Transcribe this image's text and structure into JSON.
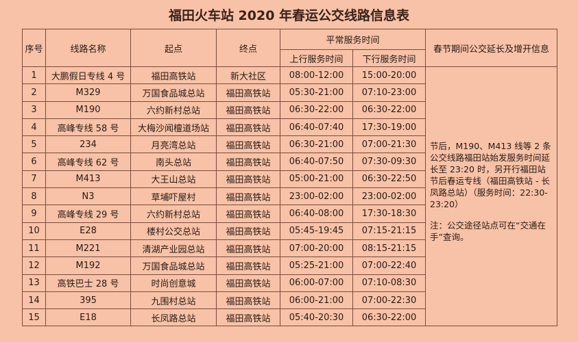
{
  "title": "福田火车站 2020 年春运公交线路信息表",
  "headers": {
    "no": "序号",
    "name": "线路名称",
    "start": "起点",
    "end": "终点",
    "normal": "平常服务时间",
    "up": "上行服务时间",
    "down": "下行服务时间",
    "extra": "春节期间公交延长及增开信息"
  },
  "rows": [
    [
      "1",
      "大鹏假日专线 4 号",
      "福田高铁站",
      "新大社区",
      "08:00-12:00",
      "15:00-20:00"
    ],
    [
      "2",
      "M329",
      "万国食品城总站",
      "福田高铁站",
      "05:30-21:00",
      "07:10-23:00"
    ],
    [
      "3",
      "M190",
      "六约新村总站",
      "福田高铁站",
      "06:30-22:00",
      "06:30-22:00"
    ],
    [
      "4",
      "高峰专线 58 号",
      "大梅沙闻檀道场站",
      "福田高铁站",
      "06:40-07:40",
      "17:30-19:00"
    ],
    [
      "5",
      "234",
      "月亮湾总站",
      "福田高铁站",
      "06:30-21:00",
      "07:00-21:30"
    ],
    [
      "6",
      "高峰专线 62 号",
      "南头总站",
      "福田高铁站",
      "06:40-07:50",
      "07:30-09:30"
    ],
    [
      "7",
      "M413",
      "大王山总站",
      "福田高铁站",
      "05:00-21:00",
      "06:30-22:50"
    ],
    [
      "8",
      "N3",
      "草埔吓屋村",
      "福田高铁站",
      "23:00-02:00",
      "23:00-02:00"
    ],
    [
      "9",
      "高峰专线 29 号",
      "六约新村总站",
      "福田高铁站",
      "06:40-08:00",
      "17:30-18:30"
    ],
    [
      "10",
      "E28",
      "楼村公交总站",
      "福田高铁站",
      "05:45-19:45",
      "07:15-21:15"
    ],
    [
      "11",
      "M221",
      "清湖产业园总站",
      "福田高铁站",
      "07:00-20:00",
      "08:15-21:15"
    ],
    [
      "12",
      "M192",
      "万国食品城总站",
      "福田高铁站",
      "05:25-21:00",
      "07:00-22:40"
    ],
    [
      "13",
      "高铁巴士 28 号",
      "时尚创意城",
      "福田高铁站",
      "06:00-07:00",
      "07:10-08:30"
    ],
    [
      "14",
      "395",
      "九围村总站",
      "福田高铁站",
      "06:00-21:00",
      "07:00-22:30"
    ],
    [
      "15",
      "E18",
      "长凤路总站",
      "福田高铁站",
      "05:40-20:30",
      "06:30-22:00"
    ]
  ],
  "note": {
    "main": "节后，M190、M413 线等 2 条公交线路福田站始发服务时间延长至 23:20 时，另开行福田站节后春运专线（福田高铁站 - 长凤路总站）（服务时间：22:30-23:20）",
    "remark": "注：公交途径站点可在“交通在手”查询。"
  }
}
